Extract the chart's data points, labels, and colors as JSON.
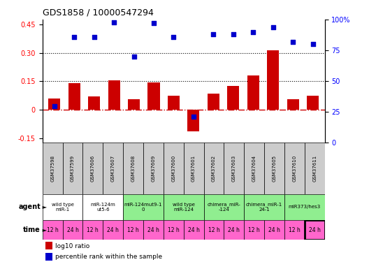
{
  "title": "GDS1858 / 10000547294",
  "gsm_labels": [
    "GSM37598",
    "GSM37599",
    "GSM37606",
    "GSM37607",
    "GSM37608",
    "GSM37609",
    "GSM37600",
    "GSM37601",
    "GSM37602",
    "GSM37603",
    "GSM37604",
    "GSM37605",
    "GSM37610",
    "GSM37611"
  ],
  "log10_ratio": [
    0.06,
    0.14,
    0.07,
    0.155,
    0.055,
    0.145,
    0.075,
    -0.115,
    0.085,
    0.125,
    0.18,
    0.315,
    0.055,
    0.075
  ],
  "percentile_rank": [
    30,
    86,
    86,
    98,
    70,
    97,
    86,
    21,
    88,
    88,
    90,
    94,
    82,
    80
  ],
  "agent_groups": [
    {
      "label": "wild type\nmiR-1",
      "span": [
        0,
        2
      ],
      "color": "#ffffff"
    },
    {
      "label": "miR-124m\nut5-6",
      "span": [
        2,
        4
      ],
      "color": "#ffffff"
    },
    {
      "label": "miR-124mut9-1\n0",
      "span": [
        4,
        6
      ],
      "color": "#90ee90"
    },
    {
      "label": "wild type\nmiR-124",
      "span": [
        6,
        8
      ],
      "color": "#90ee90"
    },
    {
      "label": "chimera_miR-\n-124",
      "span": [
        8,
        10
      ],
      "color": "#90ee90"
    },
    {
      "label": "chimera_miR-1\n24-1",
      "span": [
        10,
        12
      ],
      "color": "#90ee90"
    },
    {
      "label": "miR373/hes3",
      "span": [
        12,
        14
      ],
      "color": "#90ee90"
    }
  ],
  "time_labels": [
    "12 h",
    "24 h",
    "12 h",
    "24 h",
    "12 h",
    "24 h",
    "12 h",
    "24 h",
    "12 h",
    "24 h",
    "12 h",
    "24 h",
    "12 h",
    "24 h"
  ],
  "bar_color": "#cc0000",
  "dot_color": "#0000cc",
  "ylim_left": [
    -0.175,
    0.475
  ],
  "ylim_right": [
    0,
    133.33
  ],
  "yticks_left": [
    -0.15,
    0.0,
    0.15,
    0.3,
    0.45
  ],
  "ytick_left_labels": [
    "-0.15",
    "0",
    "0.15",
    "0.30",
    "0.45"
  ],
  "yticks_right": [
    0,
    33.33,
    66.67,
    100.0,
    133.33
  ],
  "ytick_right_labels": [
    "0",
    "25",
    "50",
    "75",
    "100%"
  ],
  "hlines": [
    0.15,
    0.3
  ],
  "zero_line_color": "#cc0000",
  "header_bg": "#cccccc",
  "pink_color": "#ff66cc",
  "pink_dark": "#cc00cc"
}
